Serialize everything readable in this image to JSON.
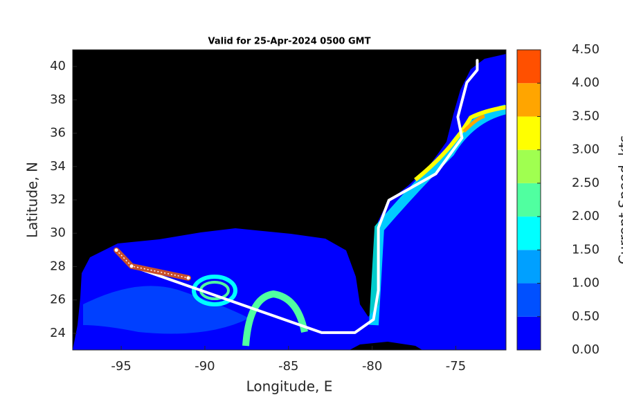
{
  "chart_data": {
    "type": "map",
    "title": "Valid for 25-Apr-2024 0500 GMT",
    "xlabel": "Longitude, E",
    "ylabel": "Latitude, N",
    "xlim": [
      -97.9,
      -72
    ],
    "ylim": [
      23,
      41
    ],
    "xticks": [
      -95,
      -90,
      -85,
      -80,
      -75
    ],
    "yticks": [
      24,
      26,
      28,
      30,
      32,
      34,
      36,
      38,
      40
    ],
    "series": [
      {
        "color": "#ffffff",
        "x": [
          -95.2,
          -94.38,
          -83.02,
          -81.03,
          -79.92,
          -79.63,
          -79.63,
          -79.0,
          -76.2,
          -74.63,
          -74.88,
          -74.34,
          -73.72,
          -73.72
        ],
        "values": [
          28.86,
          28.03,
          24.04,
          24.04,
          24.83,
          26.58,
          30.32,
          31.98,
          33.56,
          35.72,
          36.97,
          39.04,
          39.79,
          40.37
        ]
      },
      {
        "color": "#c8502a",
        "x": [
          -95.29,
          -94.38,
          -90.99
        ],
        "values": [
          28.99,
          28.03,
          27.32
        ]
      }
    ],
    "colorbar": {
      "label": "Current Speed, kts",
      "lim": [
        0,
        4.5
      ],
      "ticks": [
        {
          "value": 0,
          "label": "0.00"
        },
        {
          "value": 0.5,
          "label": "0.50"
        },
        {
          "value": 1,
          "label": "1.00"
        },
        {
          "value": 1.5,
          "label": "1.50"
        },
        {
          "value": 2,
          "label": "2.00"
        },
        {
          "value": 2.5,
          "label": "2.50"
        },
        {
          "value": 3,
          "label": "3.00"
        },
        {
          "value": 3.5,
          "label": "3.50"
        },
        {
          "value": 4,
          "label": "4.00"
        },
        {
          "value": 4.5,
          "label": "4.50"
        }
      ],
      "colors": [
        "#0000ff",
        "#0050ff",
        "#00a0ff",
        "#00ffff",
        "#50ffa0",
        "#a0ff50",
        "#ffff00",
        "#ffa500",
        "#ff5000"
      ]
    }
  }
}
